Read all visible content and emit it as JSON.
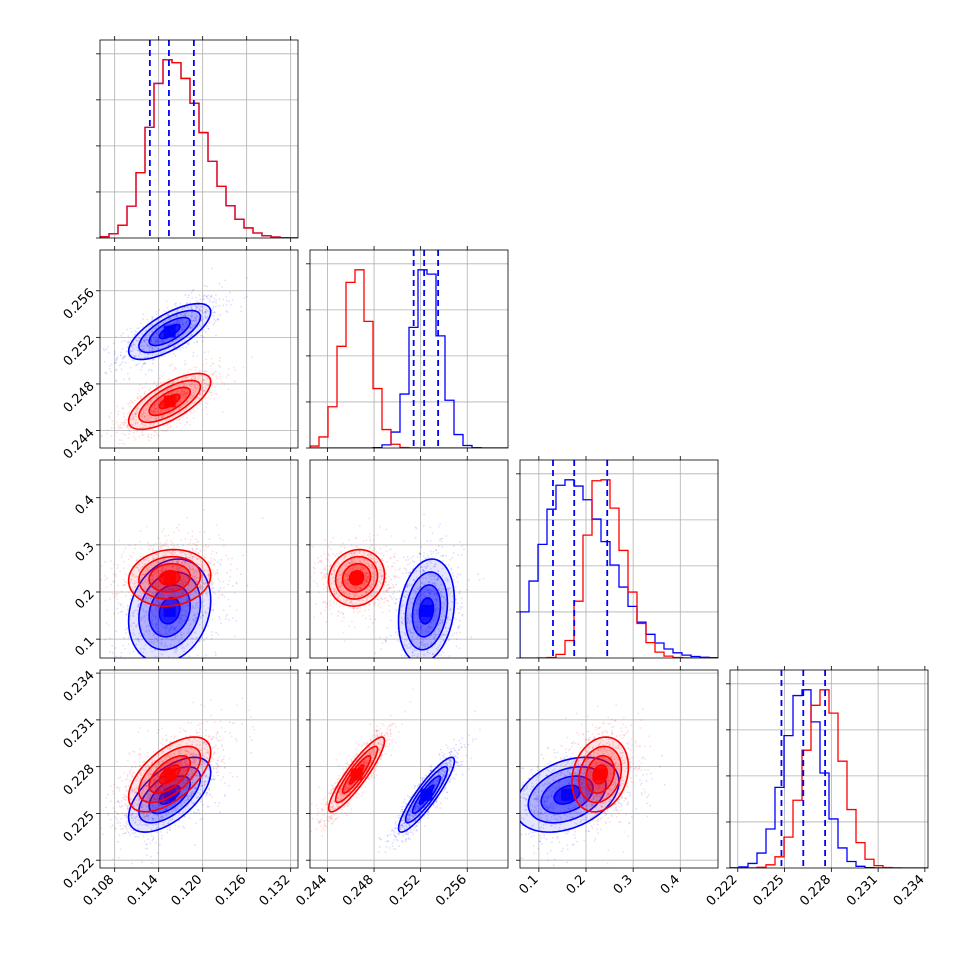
{
  "chart_data": {
    "type": "corner",
    "title": "",
    "parameters": [
      {
        "index": 0,
        "range": [
          0.106,
          0.133
        ],
        "ticks": [
          "0.108",
          "0.114",
          "0.120",
          "0.126",
          "0.132"
        ],
        "tick_values": [
          0.108,
          0.114,
          0.12,
          0.126,
          0.132
        ]
      },
      {
        "index": 1,
        "range": [
          0.2425,
          0.2595
        ],
        "ticks": [
          "0.244",
          "0.248",
          "0.252",
          "0.256"
        ],
        "tick_values": [
          0.244,
          0.248,
          0.252,
          0.256
        ]
      },
      {
        "index": 2,
        "range": [
          0.06,
          0.48
        ],
        "ticks": [
          "0.1",
          "0.2",
          "0.3",
          "0.4"
        ],
        "tick_values": [
          0.1,
          0.2,
          0.3,
          0.4
        ]
      },
      {
        "index": 3,
        "range": [
          0.2215,
          0.2342
        ],
        "ticks": [
          "0.222",
          "0.225",
          "0.228",
          "0.231",
          "0.234"
        ],
        "tick_values": [
          0.222,
          0.225,
          0.228,
          0.231,
          0.234
        ]
      }
    ],
    "series": [
      {
        "color": "#0000ff",
        "means": [
          0.1155,
          0.2525,
          0.16,
          0.2262
        ],
        "sds": [
          0.0028,
          0.0012,
          0.055,
          0.0012
        ],
        "correlations": [
          [
            1,
            0.7,
            0.2,
            0.6
          ],
          [
            0.7,
            1,
            0.2,
            0.9
          ],
          [
            0.2,
            0.2,
            1,
            0.35
          ],
          [
            0.6,
            0.9,
            0.35,
            1
          ]
        ],
        "quantiles": [
          [
            0.1128,
            0.1154,
            0.1188
          ],
          [
            0.2514,
            0.2523,
            0.2535
          ],
          [
            0.13,
            0.175,
            0.245
          ],
          [
            0.2248,
            0.2262,
            0.2276
          ]
        ]
      },
      {
        "color": "#ff0000",
        "means": [
          0.1155,
          0.2465,
          0.23,
          0.2275
        ],
        "sds": [
          0.0028,
          0.0012,
          0.03,
          0.0012
        ],
        "correlations": [
          [
            1,
            0.7,
            0.1,
            0.6
          ],
          [
            0.7,
            1,
            0.1,
            0.9
          ],
          [
            0.1,
            0.1,
            1,
            0.2
          ],
          [
            0.6,
            0.9,
            0.2,
            1
          ]
        ],
        "quantiles": null
      }
    ],
    "quantile_line_color": "#0000ff",
    "contour_levels_sigma": [
      0.5,
      1.0,
      1.5,
      2.0
    ],
    "grid": true,
    "legend": "none"
  }
}
